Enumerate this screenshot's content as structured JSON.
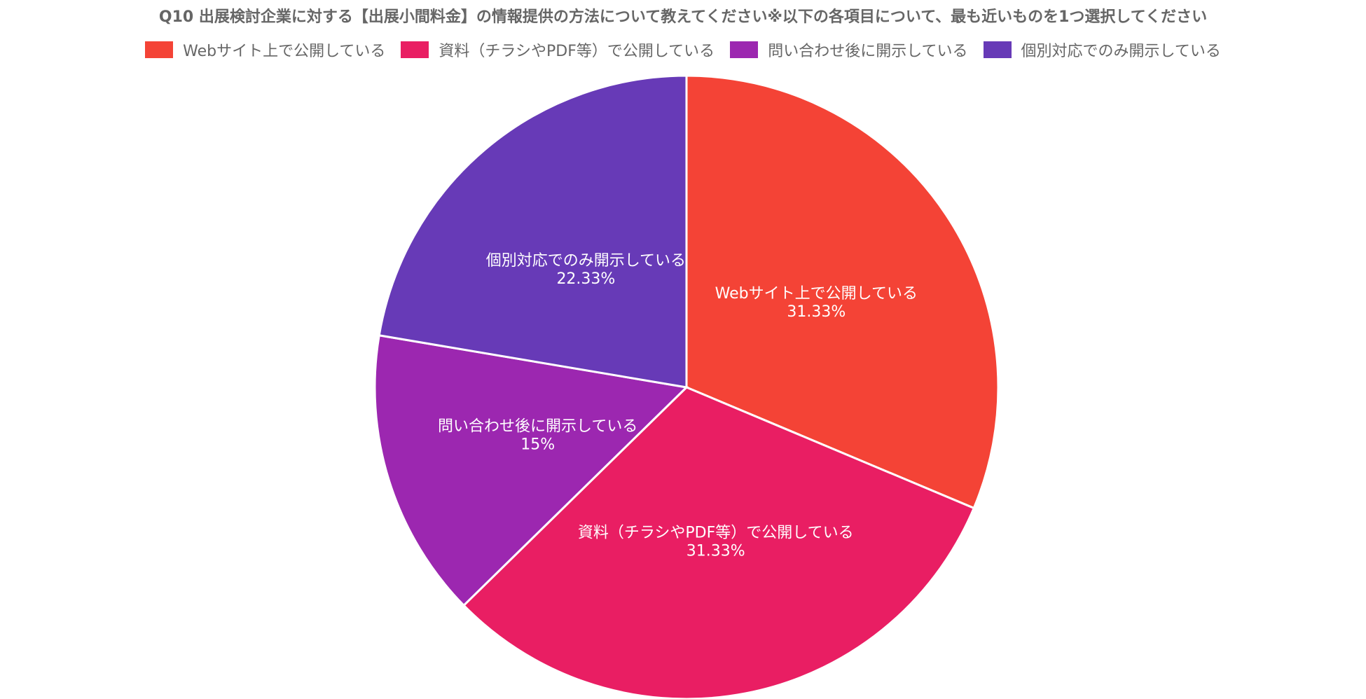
{
  "chart_data": {
    "type": "pie",
    "title": "Q10 出展検討企業に対する【出展小間料金】の情報提供の方法について教えてください※以下の各項目について、最も近いものを1つ選択してください",
    "legend_position": "top",
    "slices": [
      {
        "label": "Webサイト上で公開している",
        "value": 31.33,
        "value_label": "31.33%",
        "color": "#f44336"
      },
      {
        "label": "資料（チラシやPDF等）で公開している",
        "value": 31.33,
        "value_label": "31.33%",
        "color": "#e91e63"
      },
      {
        "label": "問い合わせ後に開示している",
        "value": 15,
        "value_label": "15%",
        "color": "#9c27b0"
      },
      {
        "label": "個別対応でのみ開示している",
        "value": 22.33,
        "value_label": "22.33%",
        "color": "#673ab7"
      }
    ]
  }
}
